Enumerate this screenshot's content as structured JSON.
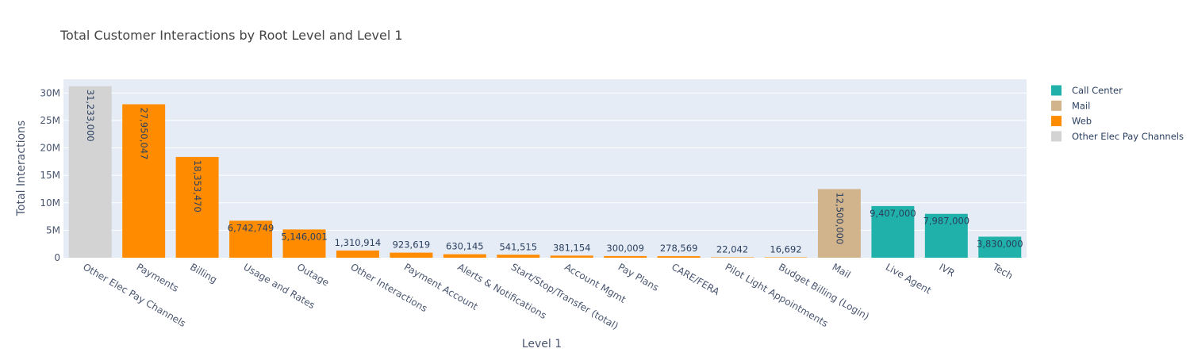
{
  "chart_data": {
    "type": "bar",
    "title": "Total Customer Interactions by Root Level and Level 1",
    "xlabel": "Level 1",
    "ylabel": "Total Interactions",
    "ylim": [
      0,
      32500000
    ],
    "yticks": [
      0,
      5000000,
      10000000,
      15000000,
      20000000,
      25000000,
      30000000
    ],
    "ytick_labels": [
      "0",
      "5M",
      "10M",
      "15M",
      "20M",
      "25M",
      "30M"
    ],
    "grid": true,
    "legend_position": "top-right",
    "legend": [
      {
        "name": "Call Center",
        "color": "#20b2aa"
      },
      {
        "name": "Mail",
        "color": "#d2b48c"
      },
      {
        "name": "Web",
        "color": "#ff8c00"
      },
      {
        "name": "Other Elec Pay Channels",
        "color": "#d3d3d3"
      }
    ],
    "bars": [
      {
        "category": "Other Elec Pay Channels",
        "value": 31233000,
        "label": "31,233,000",
        "series": "Other Elec Pay Channels"
      },
      {
        "category": "Payments",
        "value": 27950047,
        "label": "27,950,047",
        "series": "Web"
      },
      {
        "category": "Billing",
        "value": 18353470,
        "label": "18,353,470",
        "series": "Web"
      },
      {
        "category": "Usage and Rates",
        "value": 6742749,
        "label": "6,742,749",
        "series": "Web"
      },
      {
        "category": "Outage",
        "value": 5146001,
        "label": "5,146,001",
        "series": "Web"
      },
      {
        "category": "Other Interactions",
        "value": 1310914,
        "label": "1,310,914",
        "series": "Web"
      },
      {
        "category": "Payment Account",
        "value": 923619,
        "label": "923,619",
        "series": "Web"
      },
      {
        "category": "Alerts & Notifications",
        "value": 630145,
        "label": "630,145",
        "series": "Web"
      },
      {
        "category": "Start/Stop/Transfer (total)",
        "value": 541515,
        "label": "541,515",
        "series": "Web"
      },
      {
        "category": "Account Mgmt",
        "value": 381154,
        "label": "381,154",
        "series": "Web"
      },
      {
        "category": "Pay Plans",
        "value": 300009,
        "label": "300,009",
        "series": "Web"
      },
      {
        "category": "CARE/FERA",
        "value": 278569,
        "label": "278,569",
        "series": "Web"
      },
      {
        "category": "Pilot Light Appointments",
        "value": 22042,
        "label": "22,042",
        "series": "Web"
      },
      {
        "category": "Budget Billing (Login)",
        "value": 16692,
        "label": "16,692",
        "series": "Web"
      },
      {
        "category": "Mail",
        "value": 12500000,
        "label": "12,500,000",
        "series": "Mail"
      },
      {
        "category": "Live Agent",
        "value": 9407000,
        "label": "9,407,000",
        "series": "Call Center"
      },
      {
        "category": "IVR",
        "value": 7987000,
        "label": "7,987,000",
        "series": "Call Center"
      },
      {
        "category": "Tech",
        "value": 3830000,
        "label": "3,830,000",
        "series": "Call Center"
      }
    ]
  }
}
